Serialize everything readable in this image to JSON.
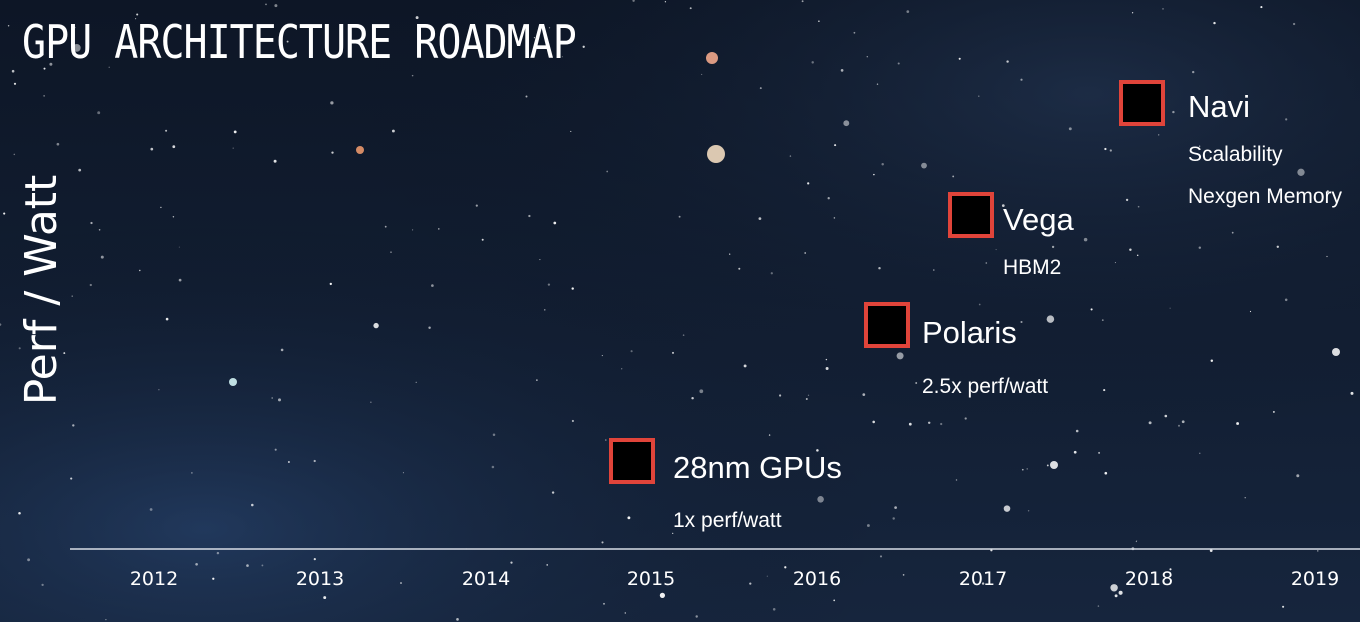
{
  "title": "GPU ARCHITECTURE ROADMAP",
  "y_axis_label": "Perf / Watt",
  "years": [
    "2012",
    "2013",
    "2014",
    "2015",
    "2016",
    "2017",
    "2018",
    "2019"
  ],
  "milestones": [
    {
      "name": "28nm GPUs",
      "notes": [
        "1x  perf/watt"
      ]
    },
    {
      "name": "Polaris",
      "notes": [
        "2.5x perf/watt"
      ]
    },
    {
      "name": "Vega",
      "notes": [
        "HBM2"
      ]
    },
    {
      "name": "Navi",
      "notes": [
        "Scalability",
        "Nexgen Memory"
      ]
    }
  ]
}
